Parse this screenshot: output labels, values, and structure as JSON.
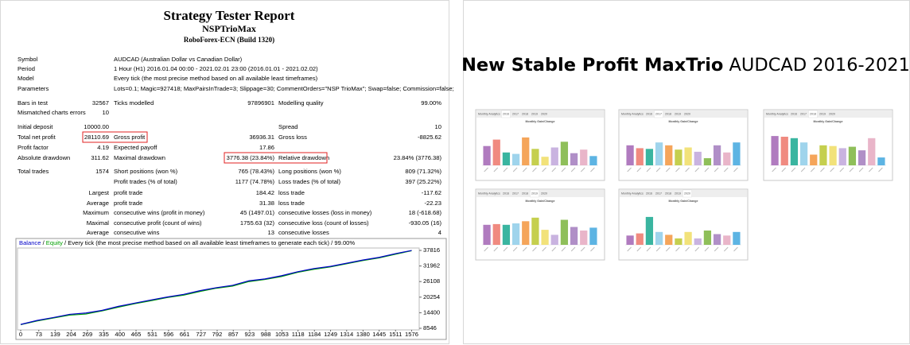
{
  "report": {
    "title": "Strategy Tester Report",
    "subtitle": "NSPTrioMax",
    "server": "RoboForex-ECN (Build 1320)",
    "info": [
      [
        "Symbol",
        "AUDCAD (Australian Dollar vs Canadian Dollar)"
      ],
      [
        "Period",
        "1 Hour (H1) 2016.01.04 00:00 - 2021.02.01 23:00 (2016.01.01 - 2021.02.02)"
      ],
      [
        "Model",
        "Every tick (the most precise method based on all available least timeframes)"
      ],
      [
        "Parameters",
        "Lots=0.1; Magic=927418; MaxPairsInTrade=3; Slippage=30; CommentOrders=\"NSP TrioMax\"; Swap=false; Commission=false;"
      ]
    ],
    "stats": [
      [
        "Bars in test",
        "32567",
        "Ticks modelled",
        "97896901",
        "Modelling quality",
        "99.00%"
      ],
      [
        "Mismatched charts errors",
        "10",
        null,
        null,
        null,
        null
      ],
      [
        "Initial deposit",
        "10000.00",
        null,
        null,
        "Spread",
        "10"
      ],
      [
        "Total net profit",
        "28110.69",
        "Gross profit",
        "36936.31",
        "Gross loss",
        "-8825.62"
      ],
      [
        "Profit factor",
        "4.19",
        "Expected payoff",
        "17.86",
        null,
        null
      ],
      [
        "Absolute drawdown",
        "311.62",
        "Maximal drawdown",
        "3776.38 (23.84%)",
        "Relative drawdown",
        "23.84% (3776.38)"
      ],
      [
        "Total trades",
        "1574",
        "Short positions (won %)",
        "765 (78.43%)",
        "Long positions (won %)",
        "809 (71.32%)"
      ],
      [
        null,
        null,
        "Profit trades (% of total)",
        "1177 (74.78%)",
        "Loss trades (% of total)",
        "397 (25.22%)"
      ],
      [
        null,
        "Largest",
        "profit trade",
        "184.42",
        "loss trade",
        "-117.62"
      ],
      [
        null,
        "Average",
        "profit trade",
        "31.38",
        "loss trade",
        "-22.23"
      ],
      [
        null,
        "Maximum",
        "consecutive wins (profit in money)",
        "45 (1497.01)",
        "consecutive losses (loss in money)",
        "18 (-618.68)"
      ],
      [
        null,
        "Maximal",
        "consecutive profit (count of wins)",
        "1755.63 (32)",
        "consecutive loss (count of losses)",
        "-930.05 (16)"
      ],
      [
        null,
        "Average",
        "consecutive wins",
        "13",
        "consecutive losses",
        "4"
      ]
    ],
    "chart": {
      "type": "line",
      "separator": " / ",
      "caption": "Every tick (the most precise method based on all available least timeframes to generate each tick)",
      "quality": "99.00%",
      "series": [
        {
          "name": "Balance",
          "color": "#0000c8",
          "x": [
            0,
            66,
            132,
            197,
            263,
            329,
            394,
            460,
            526,
            591,
            657,
            723,
            788,
            854,
            920,
            985,
            1051,
            1117,
            1182,
            1248,
            1314,
            1379,
            1445,
            1511,
            1576
          ],
          "values": [
            10000,
            11500,
            12600,
            13800,
            14300,
            15300,
            16800,
            18000,
            19200,
            20300,
            21300,
            22700,
            23800,
            24700,
            26400,
            27100,
            28300,
            29800,
            31000,
            31800,
            33000,
            34200,
            35200,
            36600,
            37800
          ]
        },
        {
          "name": "Equity",
          "color": "#00a000",
          "x": [
            0,
            66,
            132,
            197,
            263,
            329,
            394,
            460,
            526,
            591,
            657,
            723,
            788,
            854,
            920,
            985,
            1051,
            1117,
            1182,
            1248,
            1314,
            1379,
            1445,
            1511,
            1576
          ],
          "values": [
            9900,
            11300,
            12400,
            13500,
            13900,
            15100,
            16500,
            17800,
            18900,
            20100,
            21000,
            22400,
            23600,
            24400,
            26100,
            26900,
            28000,
            29600,
            30700,
            31600,
            32800,
            34000,
            35000,
            36400,
            37700
          ]
        }
      ],
      "xlim": [
        0,
        1600
      ],
      "ylim": [
        8546,
        37816
      ],
      "xticks": [
        0,
        73,
        139,
        204,
        269,
        335,
        400,
        465,
        531,
        596,
        661,
        727,
        792,
        857,
        923,
        988,
        1053,
        1118,
        1184,
        1249,
        1314,
        1380,
        1445,
        1511,
        1576
      ],
      "yticks": [
        37816,
        31962,
        26108,
        20254,
        14400,
        8546
      ]
    }
  },
  "promo": {
    "title_bold": "New Stable Profit MaxTrio",
    "title_rest": "AUDCAD 2016-2021",
    "tabs": [
      "Monthly Analytics",
      "2016",
      "2017",
      "2018",
      "2019",
      "2020"
    ],
    "subtitle": "Monthly Gain/Change",
    "colors": [
      "#b07bbf",
      "#f08a80",
      "#3ab5a0",
      "#9fd4ec",
      "#f5a55a",
      "#c5cf4e",
      "#f2e27a",
      "#c9b3e0",
      "#8fbf5a",
      "#b08fc7",
      "#e9b5c9",
      "#5db4e3"
    ],
    "thumbnails": [
      {
        "type": "bar",
        "active": 1,
        "ylim": [
          0,
          5
        ],
        "values": [
          2.7,
          3.6,
          1.8,
          1.6,
          3.9,
          2.3,
          1.2,
          2.5,
          3.3,
          1.7,
          2.2,
          1.3
        ]
      },
      {
        "type": "bar",
        "active": 2,
        "ylim": [
          0,
          5
        ],
        "values": [
          2.8,
          2.4,
          2.3,
          3.2,
          2.8,
          2.2,
          2.5,
          1.9,
          1.0,
          2.8,
          1.8,
          3.2
        ]
      },
      {
        "type": "bar",
        "active": 3,
        "ylim": [
          0,
          5
        ],
        "values": [
          4.1,
          4.0,
          3.8,
          3.2,
          1.5,
          2.8,
          2.7,
          2.4,
          2.6,
          2.1,
          3.8,
          1.1
        ]
      },
      {
        "type": "bar",
        "active": 4,
        "ylim": [
          0,
          5
        ],
        "values": [
          2.8,
          2.9,
          2.8,
          3.0,
          3.3,
          3.8,
          2.1,
          1.4,
          3.5,
          2.5,
          2.0,
          2.4
        ]
      },
      {
        "type": "bar",
        "active": 5,
        "ylim": [
          0,
          5
        ],
        "values": [
          1.3,
          1.6,
          3.9,
          1.8,
          1.4,
          0.9,
          1.8,
          0.9,
          2.0,
          1.5,
          1.3,
          1.8
        ]
      }
    ]
  }
}
